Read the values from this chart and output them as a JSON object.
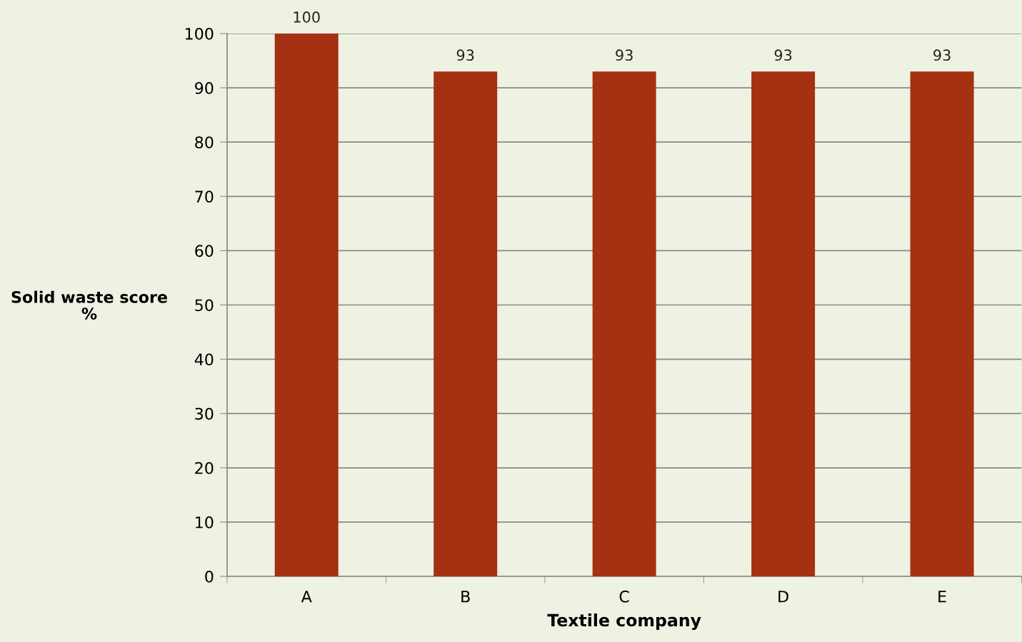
{
  "chart_data": {
    "type": "bar",
    "xlabel": "Textile company",
    "ylabel": "Solid waste score %",
    "categories": [
      "A",
      "B",
      "C",
      "D",
      "E"
    ],
    "values": [
      100,
      93,
      93,
      93,
      93
    ],
    "color": "#a63012",
    "ylim": [
      0,
      100
    ],
    "yticks": [
      0,
      10,
      20,
      30,
      40,
      50,
      60,
      70,
      80,
      90,
      100
    ],
    "grid": "y",
    "data_labels": true,
    "legend": false
  }
}
